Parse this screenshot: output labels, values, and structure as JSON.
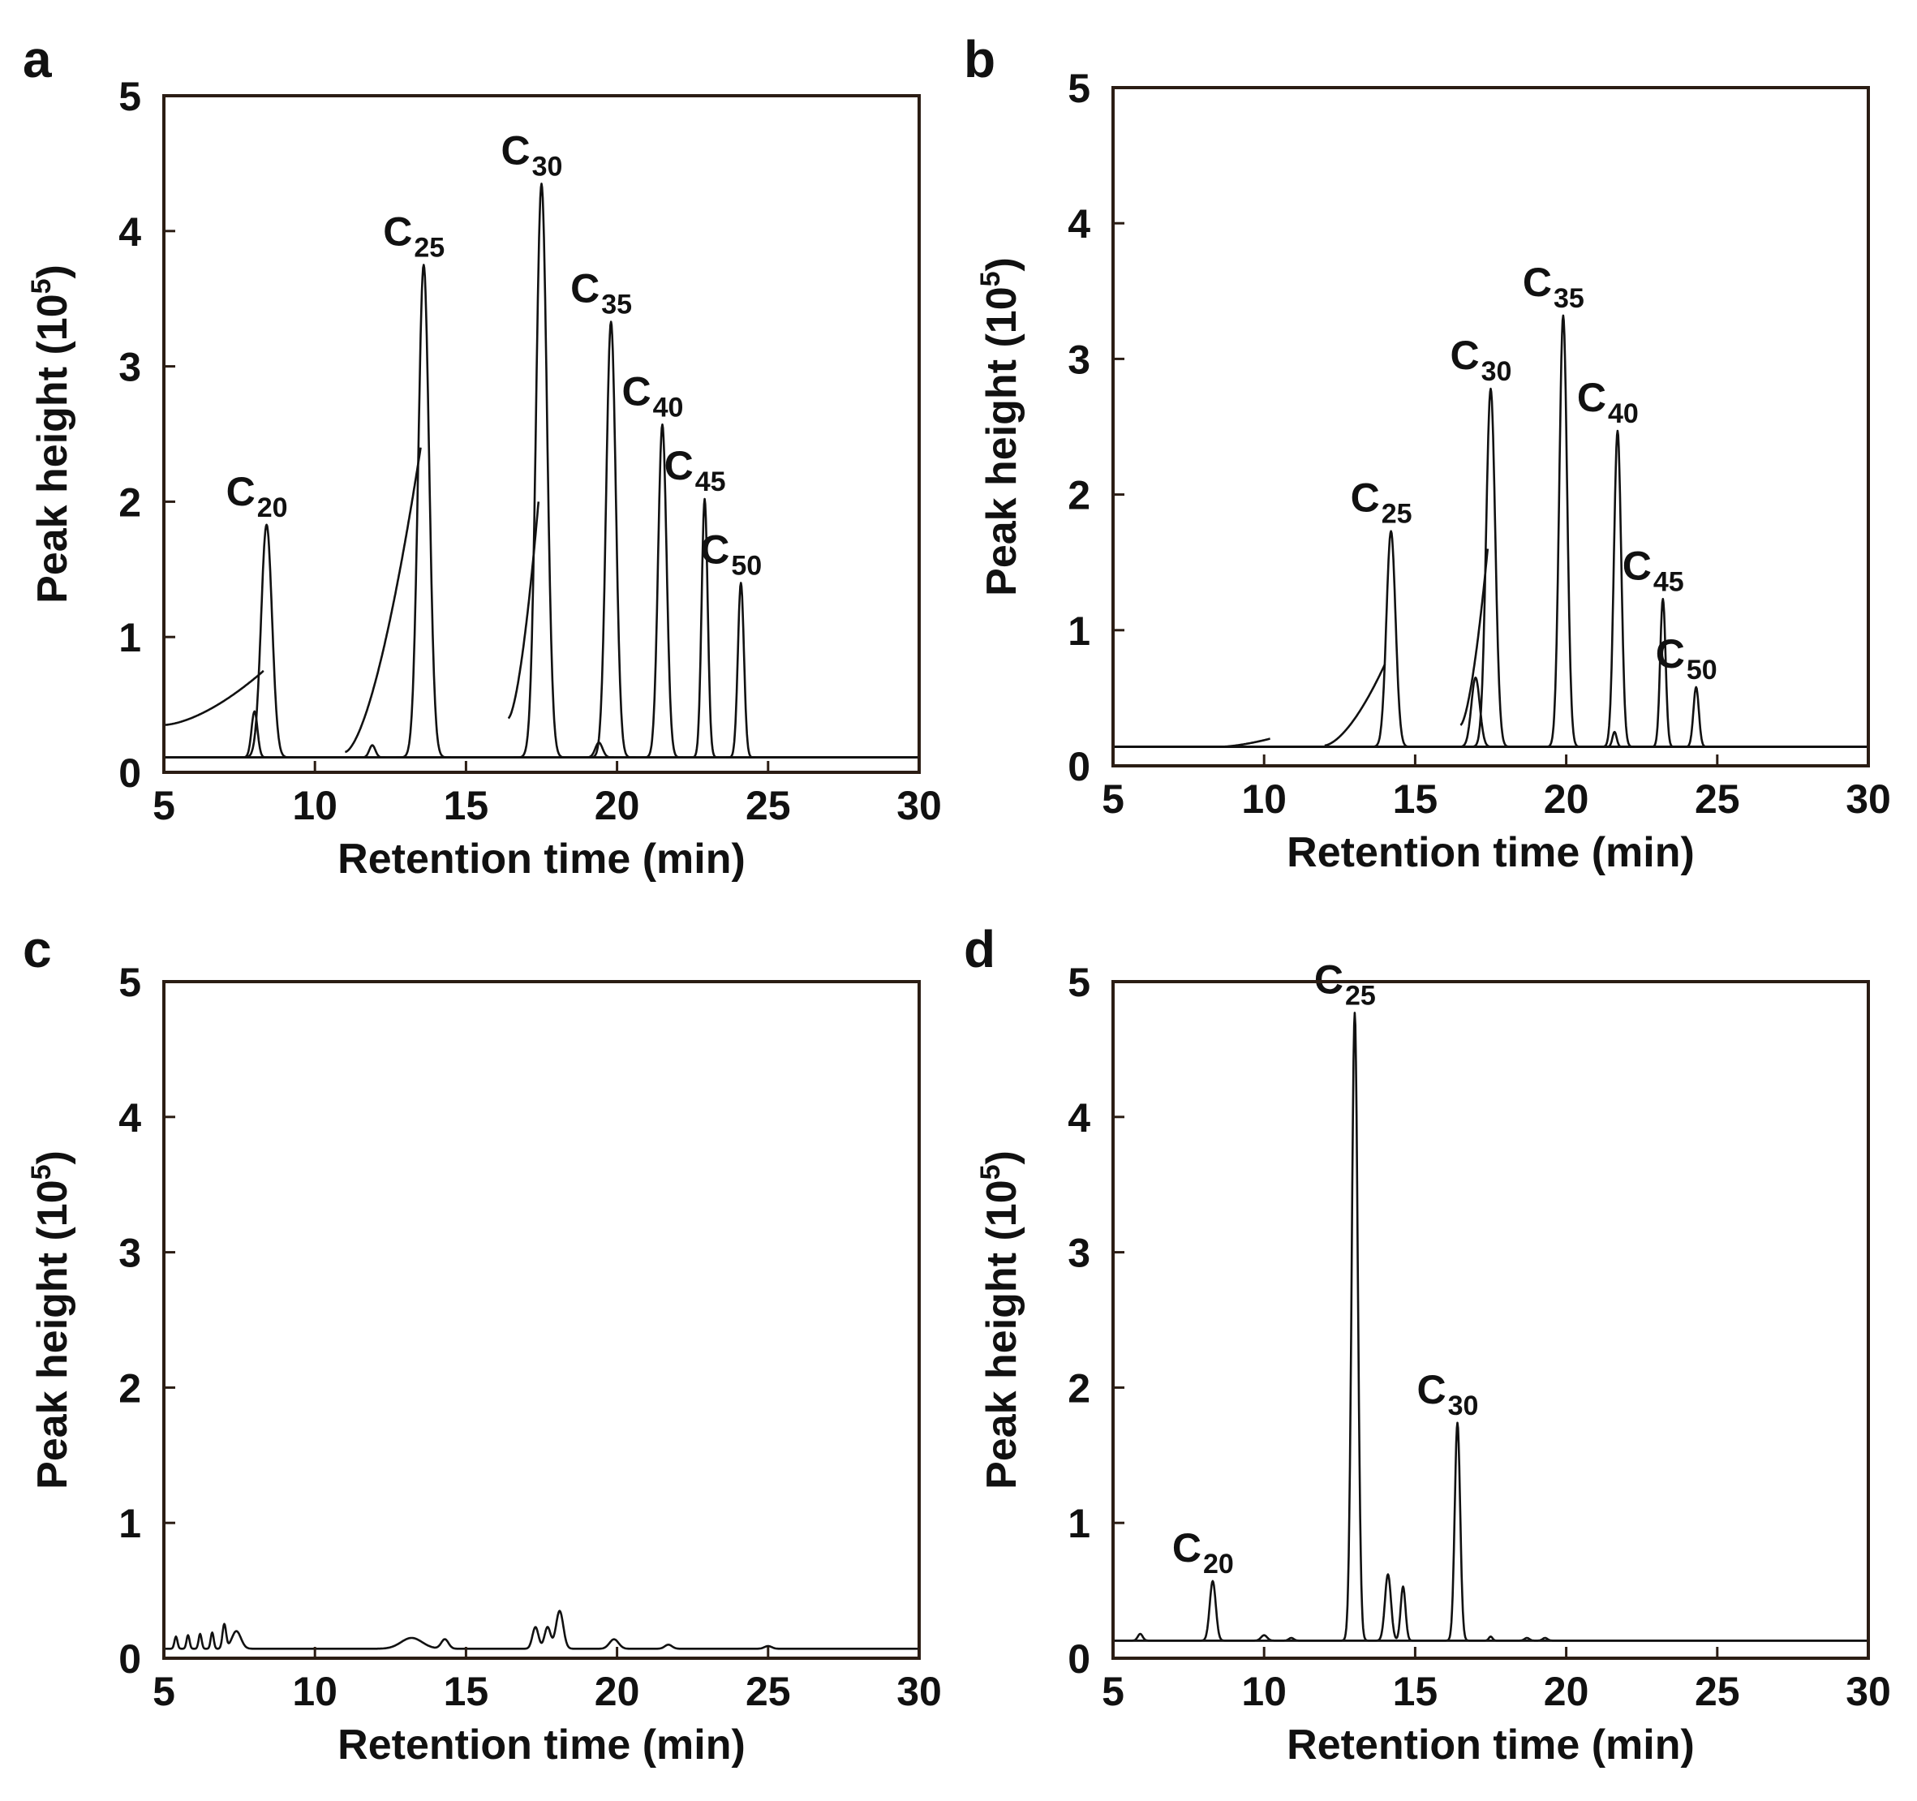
{
  "figure": {
    "panels": [
      "a",
      "b",
      "c",
      "d"
    ]
  },
  "chart_data": [
    {
      "panel": "a",
      "type": "line",
      "xlabel": "Retention time (min)",
      "ylabel_main": "Peak height (10",
      "ylabel_sup": "5",
      "ylabel_end": ")",
      "xlim": [
        5,
        30
      ],
      "ylim": [
        0,
        5
      ],
      "xticks": [
        5,
        10,
        15,
        20,
        25,
        30
      ],
      "yticks": [
        0,
        1,
        2,
        3,
        4,
        5
      ],
      "baseline": 0.11,
      "peaks": [
        {
          "label_main": "C",
          "label_sub": "20",
          "x": 8.4,
          "y": 1.83,
          "width": 0.18
        },
        {
          "label_main": "C",
          "label_sub": "25",
          "x": 13.6,
          "y": 3.75,
          "width": 0.18
        },
        {
          "label_main": "C",
          "label_sub": "30",
          "x": 17.5,
          "y": 4.35,
          "width": 0.18
        },
        {
          "label_main": "C",
          "label_sub": "35",
          "x": 19.8,
          "y": 3.33,
          "width": 0.16
        },
        {
          "label_main": "C",
          "label_sub": "40",
          "x": 21.5,
          "y": 2.57,
          "width": 0.14
        },
        {
          "label_main": "C",
          "label_sub": "45",
          "x": 22.9,
          "y": 2.02,
          "width": 0.1
        },
        {
          "label_main": "C",
          "label_sub": "50",
          "x": 24.1,
          "y": 1.4,
          "width": 0.1
        }
      ],
      "minor_peaks": [
        {
          "x": 8.0,
          "y": 0.45,
          "width": 0.1
        },
        {
          "x": 11.9,
          "y": 0.2,
          "width": 0.1
        },
        {
          "x": 19.4,
          "y": 0.22,
          "width": 0.12
        }
      ],
      "shoulders": [
        {
          "start": 5.0,
          "end": 8.3,
          "y0": 0.35,
          "y1": 0.75
        },
        {
          "start": 11.0,
          "end": 13.5,
          "y0": 0.15,
          "y1": 2.4
        },
        {
          "start": 16.4,
          "end": 17.4,
          "y0": 0.4,
          "y1": 2.0
        }
      ]
    },
    {
      "panel": "b",
      "type": "line",
      "xlabel": "Retention time (min)",
      "ylabel_main": "Peak height (10",
      "ylabel_sup": "5",
      "ylabel_end": ")",
      "xlim": [
        5,
        30
      ],
      "ylim": [
        0,
        5
      ],
      "xticks": [
        5,
        10,
        15,
        20,
        25,
        30
      ],
      "yticks": [
        0,
        1,
        2,
        3,
        4,
        5
      ],
      "baseline": 0.14,
      "peaks": [
        {
          "label_main": "C",
          "label_sub": "25",
          "x": 14.2,
          "y": 1.73,
          "width": 0.15
        },
        {
          "label_main": "C",
          "label_sub": "30",
          "x": 17.5,
          "y": 2.78,
          "width": 0.15
        },
        {
          "label_main": "C",
          "label_sub": "35",
          "x": 19.9,
          "y": 3.32,
          "width": 0.13
        },
        {
          "label_main": "C",
          "label_sub": "40",
          "x": 21.7,
          "y": 2.47,
          "width": 0.12
        },
        {
          "label_main": "C",
          "label_sub": "45",
          "x": 23.2,
          "y": 1.23,
          "width": 0.09
        },
        {
          "label_main": "C",
          "label_sub": "50",
          "x": 24.3,
          "y": 0.58,
          "width": 0.09
        }
      ],
      "minor_peaks": [
        {
          "x": 17.0,
          "y": 0.65,
          "width": 0.14
        },
        {
          "x": 21.6,
          "y": 0.25,
          "width": 0.07
        }
      ],
      "shoulders": [
        {
          "start": 8.5,
          "end": 10.2,
          "y0": 0.14,
          "y1": 0.2
        },
        {
          "start": 12.0,
          "end": 14.0,
          "y0": 0.15,
          "y1": 0.75
        },
        {
          "start": 16.5,
          "end": 17.4,
          "y0": 0.3,
          "y1": 1.6
        }
      ]
    },
    {
      "panel": "c",
      "type": "line",
      "xlabel": "Retention time (min)",
      "ylabel_main": "Peak height (10",
      "ylabel_sup": "5",
      "ylabel_end": ")",
      "xlim": [
        5,
        30
      ],
      "ylim": [
        0,
        5
      ],
      "xticks": [
        5,
        10,
        15,
        20,
        25,
        30
      ],
      "yticks": [
        0,
        1,
        2,
        3,
        4,
        5
      ],
      "baseline": 0.07,
      "peaks": [],
      "minor_peaks": [
        {
          "x": 5.4,
          "y": 0.16,
          "width": 0.05
        },
        {
          "x": 5.8,
          "y": 0.17,
          "width": 0.05
        },
        {
          "x": 6.2,
          "y": 0.18,
          "width": 0.05
        },
        {
          "x": 6.6,
          "y": 0.19,
          "width": 0.05
        },
        {
          "x": 7.0,
          "y": 0.25,
          "width": 0.06
        },
        {
          "x": 7.4,
          "y": 0.2,
          "width": 0.15
        },
        {
          "x": 13.2,
          "y": 0.15,
          "width": 0.35
        },
        {
          "x": 14.3,
          "y": 0.14,
          "width": 0.12
        },
        {
          "x": 17.3,
          "y": 0.23,
          "width": 0.1
        },
        {
          "x": 17.7,
          "y": 0.23,
          "width": 0.1
        },
        {
          "x": 18.1,
          "y": 0.35,
          "width": 0.12
        },
        {
          "x": 19.9,
          "y": 0.14,
          "width": 0.15
        },
        {
          "x": 21.7,
          "y": 0.1,
          "width": 0.12
        },
        {
          "x": 25.0,
          "y": 0.09,
          "width": 0.12
        }
      ],
      "shoulders": []
    },
    {
      "panel": "d",
      "type": "line",
      "xlabel": "Retention time (min)",
      "ylabel_main": "Peak height (10",
      "ylabel_sup": "5",
      "ylabel_end": ")",
      "xlim": [
        5,
        30
      ],
      "ylim": [
        0,
        5
      ],
      "xticks": [
        5,
        10,
        15,
        20,
        25,
        30
      ],
      "yticks": [
        0,
        1,
        2,
        3,
        4,
        5
      ],
      "baseline": 0.13,
      "peaks": [
        {
          "label_main": "C",
          "label_sub": "20",
          "x": 8.3,
          "y": 0.57,
          "width": 0.1
        },
        {
          "label_main": "C",
          "label_sub": "25",
          "x": 13.0,
          "y": 4.77,
          "width": 0.1
        },
        {
          "label_main": "C",
          "label_sub": "30",
          "x": 16.4,
          "y": 1.74,
          "width": 0.09
        }
      ],
      "minor_peaks": [
        {
          "x": 5.9,
          "y": 0.18,
          "width": 0.08
        },
        {
          "x": 10.0,
          "y": 0.17,
          "width": 0.1
        },
        {
          "x": 10.9,
          "y": 0.15,
          "width": 0.08
        },
        {
          "x": 14.1,
          "y": 0.62,
          "width": 0.1
        },
        {
          "x": 14.6,
          "y": 0.53,
          "width": 0.08
        },
        {
          "x": 17.5,
          "y": 0.16,
          "width": 0.06
        },
        {
          "x": 18.7,
          "y": 0.15,
          "width": 0.08
        },
        {
          "x": 19.3,
          "y": 0.15,
          "width": 0.08
        }
      ],
      "shoulders": []
    }
  ]
}
